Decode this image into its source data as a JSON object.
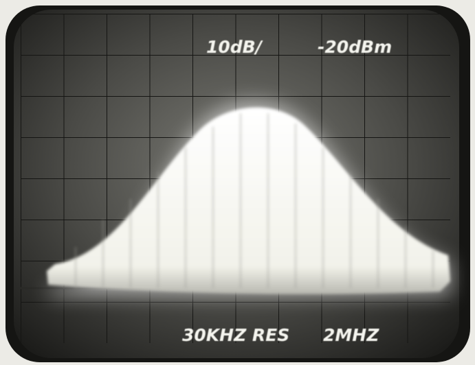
{
  "screen": {
    "scale_label": "10dB/",
    "reference_label": "-20dBm",
    "resolution_label": "30KHZ RES",
    "span_label": "2MHZ"
  }
}
